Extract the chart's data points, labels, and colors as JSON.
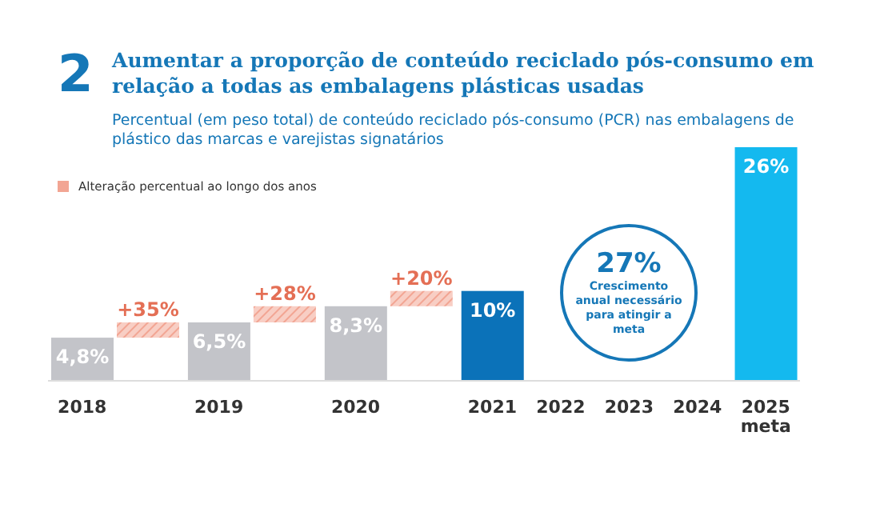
{
  "chart_data": {
    "type": "bar",
    "title": "Aumentar a proporção de conteúdo reciclado pós-consumo em relação a todas as embalagens plásticas usadas",
    "subtitle": "Percentual (em peso total) de conteúdo reciclado pós-consumo (PCR) nas embalagens de plástico das marcas e varejistas signatários",
    "categories": [
      "2018",
      null,
      "2019",
      null,
      "2020",
      null,
      "2021",
      "2022",
      "2023",
      "2024",
      "2025\nmeta"
    ],
    "colors": [
      "#c3c4c9",
      null,
      "#c3c4c9",
      null,
      "#c3c4c9",
      null,
      "#0b72b9",
      null,
      null,
      null,
      "#14b9ef"
    ],
    "values": [
      4.8,
      null,
      6.5,
      null,
      8.3,
      null,
      10,
      null,
      null,
      null,
      26
    ],
    "value_labels": [
      "4,8%",
      null,
      "6,5%",
      null,
      "8,3%",
      null,
      "10%",
      null,
      null,
      null,
      "26%"
    ],
    "annotations": [
      "2",
      "27%",
      "Crescimento anual necessário para atingir a meta",
      "Alteração percentual ao longo dos anos",
      "+35%",
      "+28%",
      "+20%"
    ]
  }
}
